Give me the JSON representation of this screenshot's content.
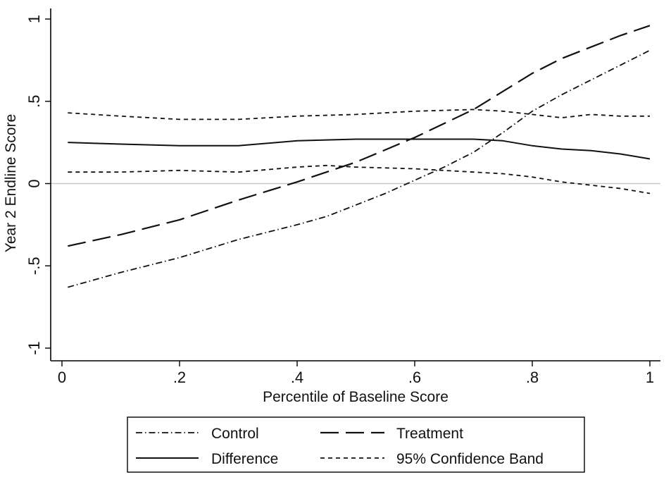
{
  "chart_data": {
    "type": "line",
    "title": "",
    "xlabel": "Percentile of Baseline Score",
    "ylabel": "Year 2 Endline Score",
    "xlim": [
      0,
      1
    ],
    "ylim": [
      -1.1,
      1.05
    ],
    "xticks": [
      0,
      0.2,
      0.4,
      0.6,
      0.8,
      1
    ],
    "xtick_labels": [
      "0",
      ".2",
      ".4",
      ".6",
      ".8",
      "1"
    ],
    "yticks": [
      -1,
      -0.5,
      0,
      0.5,
      1
    ],
    "ytick_labels": [
      "-1",
      "-.5",
      "0",
      ".5",
      "1"
    ],
    "reference_line_y": 0,
    "grid": false,
    "legend_position": "bottom",
    "series": [
      {
        "name": "Control",
        "style": "dash-dot",
        "x": [
          0.01,
          0.1,
          0.2,
          0.3,
          0.4,
          0.45,
          0.5,
          0.55,
          0.6,
          0.65,
          0.7,
          0.75,
          0.8,
          0.85,
          0.9,
          0.95,
          1.0
        ],
        "y": [
          -0.63,
          -0.54,
          -0.45,
          -0.34,
          -0.25,
          -0.2,
          -0.13,
          -0.06,
          0.02,
          0.1,
          0.19,
          0.31,
          0.44,
          0.54,
          0.63,
          0.72,
          0.81
        ]
      },
      {
        "name": "Treatment",
        "style": "long-dash",
        "x": [
          0.01,
          0.1,
          0.2,
          0.3,
          0.4,
          0.5,
          0.6,
          0.7,
          0.75,
          0.8,
          0.85,
          0.9,
          0.95,
          1.0
        ],
        "y": [
          -0.38,
          -0.31,
          -0.22,
          -0.1,
          0.01,
          0.13,
          0.28,
          0.45,
          0.56,
          0.67,
          0.76,
          0.83,
          0.9,
          0.96
        ]
      },
      {
        "name": "Difference",
        "style": "solid",
        "x": [
          0.01,
          0.1,
          0.2,
          0.3,
          0.4,
          0.5,
          0.6,
          0.7,
          0.75,
          0.8,
          0.85,
          0.9,
          0.95,
          1.0
        ],
        "y": [
          0.25,
          0.24,
          0.23,
          0.23,
          0.26,
          0.27,
          0.27,
          0.27,
          0.26,
          0.23,
          0.21,
          0.2,
          0.18,
          0.15
        ]
      },
      {
        "name": "95% Confidence Band",
        "style": "short-dash",
        "x": [
          0.01,
          0.1,
          0.2,
          0.3,
          0.4,
          0.5,
          0.6,
          0.7,
          0.75,
          0.8,
          0.85,
          0.9,
          0.95,
          1.0
        ],
        "y": [
          0.43,
          0.41,
          0.39,
          0.39,
          0.41,
          0.42,
          0.44,
          0.45,
          0.44,
          0.42,
          0.4,
          0.42,
          0.41,
          0.41
        ]
      },
      {
        "name": "",
        "style": "short-dash",
        "x": [
          0.01,
          0.1,
          0.2,
          0.3,
          0.4,
          0.45,
          0.5,
          0.6,
          0.7,
          0.75,
          0.8,
          0.85,
          0.9,
          0.95,
          1.0
        ],
        "y": [
          0.07,
          0.07,
          0.08,
          0.07,
          0.1,
          0.11,
          0.1,
          0.09,
          0.07,
          0.06,
          0.04,
          0.01,
          -0.01,
          -0.03,
          -0.06
        ]
      }
    ],
    "legend": [
      {
        "label": "Control",
        "style": "dash-dot"
      },
      {
        "label": "Treatment",
        "style": "long-dash"
      },
      {
        "label": "Difference",
        "style": "solid"
      },
      {
        "label": "95% Confidence Band",
        "style": "short-dash"
      }
    ]
  }
}
